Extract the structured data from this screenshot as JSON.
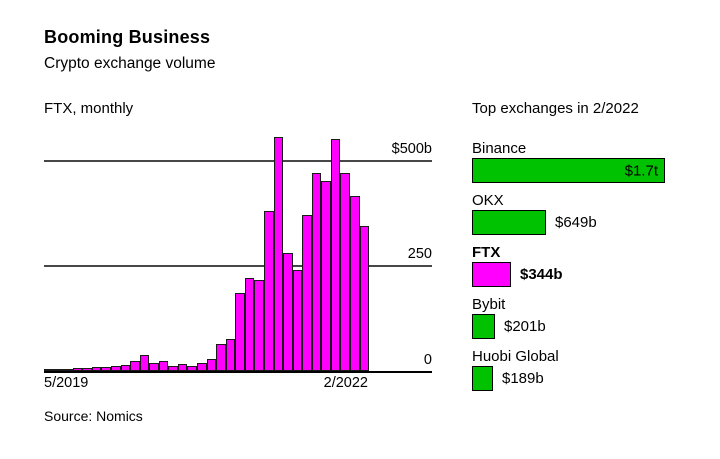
{
  "header": {
    "title": "Booming Business",
    "subtitle": "Crypto exchange volume"
  },
  "left_chart": {
    "label": "FTX, monthly"
  },
  "right_panel": {
    "title": "Top exchanges in 2/2022"
  },
  "source": "Source: Nomics",
  "colors": {
    "magenta": "#ff00ff",
    "green": "#00c200",
    "bar_outline": "#1a1a1a",
    "gridline": "#474747",
    "text": "#000000"
  },
  "chart_data": [
    {
      "type": "bar",
      "title": "FTX, monthly",
      "unit": "USD billions",
      "bar_color": "#ff00ff",
      "grid": "horizontal gridlines at 0, 250, 500",
      "ylim": [
        0,
        560
      ],
      "y_ticks": [
        {
          "label": "$500b",
          "value": 500
        },
        {
          "label": "250",
          "value": 250
        },
        {
          "label": "0",
          "value": 0
        }
      ],
      "x_tick_labels": [
        "5/2019",
        "2/2022"
      ],
      "x": [
        "5/2019",
        "6/2019",
        "7/2019",
        "8/2019",
        "9/2019",
        "10/2019",
        "11/2019",
        "12/2019",
        "1/2020",
        "2/2020",
        "3/2020",
        "4/2020",
        "5/2020",
        "6/2020",
        "7/2020",
        "8/2020",
        "9/2020",
        "10/2020",
        "11/2020",
        "12/2020",
        "1/2021",
        "2/2021",
        "3/2021",
        "4/2021",
        "5/2021",
        "6/2021",
        "7/2021",
        "8/2021",
        "9/2021",
        "10/2021",
        "11/2021",
        "12/2021",
        "1/2022",
        "2/2022"
      ],
      "values": [
        1,
        2,
        5,
        7,
        7,
        9,
        9,
        12,
        14,
        23,
        37,
        18,
        23,
        12,
        16,
        12,
        19,
        28,
        65,
        75,
        185,
        220,
        215,
        380,
        555,
        280,
        240,
        370,
        470,
        450,
        550,
        470,
        415,
        344
      ]
    },
    {
      "type": "bar",
      "orientation": "horizontal",
      "title": "Top exchanges in 2/2022",
      "unit": "USD billions",
      "categories": [
        "Binance",
        "OKX",
        "FTX",
        "Bybit",
        "Huobi Global"
      ],
      "values": [
        1700,
        649,
        344,
        201,
        189
      ],
      "value_labels": [
        "$1.7t",
        "$649b",
        "$344b",
        "$201b",
        "$189b"
      ],
      "bar_colors": [
        "#00c200",
        "#00c200",
        "#ff00ff",
        "#00c200",
        "#00c200"
      ],
      "value_label_inside": [
        true,
        false,
        false,
        false,
        false
      ],
      "highlight_category": "FTX"
    }
  ]
}
